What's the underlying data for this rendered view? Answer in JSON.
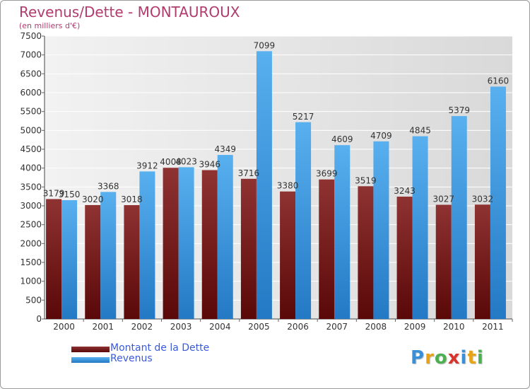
{
  "chart_data": {
    "type": "bar",
    "title": "Revenus/Dette - MONTAUROUX",
    "subtitle": "(en milliers d'€)",
    "categories": [
      "2000",
      "2001",
      "2002",
      "2003",
      "2004",
      "2005",
      "2006",
      "2007",
      "2008",
      "2009",
      "2010",
      "2011"
    ],
    "series": [
      {
        "name": "Montant de la Dette",
        "color": "#7a1a1a",
        "values": [
          3179,
          3020,
          3018,
          4008,
          3946,
          3716,
          3380,
          3699,
          3519,
          3243,
          3027,
          3032
        ]
      },
      {
        "name": "Revenus",
        "color": "#3a9de0",
        "values": [
          3150,
          3368,
          3912,
          4023,
          4349,
          7099,
          5217,
          4609,
          4709,
          4845,
          5379,
          6160
        ]
      }
    ],
    "ylim": [
      0,
      7500
    ],
    "ytick_step": 500,
    "grid": true,
    "legend": "bottom-left"
  },
  "logo": {
    "letters": [
      "P",
      "r",
      "o",
      "x",
      "i",
      "t",
      "i"
    ],
    "colors": [
      "#3a8fd9",
      "#e8a317",
      "#4caf50",
      "#d9342b",
      "#3a8fd9",
      "#e8a317",
      "#4caf50"
    ]
  }
}
